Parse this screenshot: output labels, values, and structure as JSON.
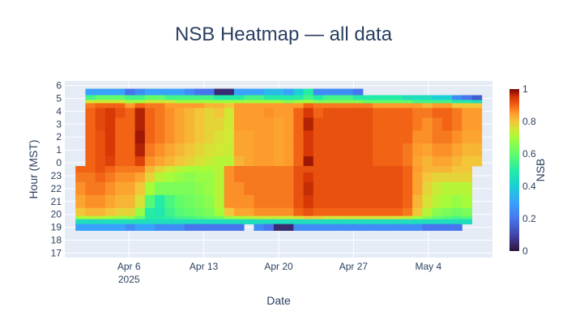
{
  "chart_data": {
    "type": "heatmap",
    "title": "NSB Heatmap — all data",
    "xlabel": "Date",
    "ylabel": "Hour (MST)",
    "x_ticks": [
      "Apr 6",
      "Apr 13",
      "Apr 20",
      "Apr 27",
      "May 4"
    ],
    "x_tick_year": "2025",
    "x_range": [
      "2025-03-31",
      "2025-05-10"
    ],
    "y_ticks": [
      "6",
      "5",
      "4",
      "3",
      "2",
      "1",
      "0",
      "23",
      "22",
      "21",
      "20",
      "19",
      "18",
      "17"
    ],
    "colorbar": {
      "title": "NSB",
      "range": [
        0,
        1
      ],
      "ticks": [
        "0",
        "0.2",
        "0.4",
        "0.6",
        "0.8",
        "1"
      ]
    },
    "colorscale": "Turbo",
    "background_color": "#e5ecf6",
    "grid": true,
    "rows": [
      {
        "hour": "5.5",
        "values": [
          null,
          0.3,
          0.3,
          0.3,
          0.3,
          0.2,
          0.25,
          0.3,
          0.3,
          0.3,
          0.3,
          0.25,
          0.2,
          0.2,
          0.05,
          0.05,
          0.3,
          0.3,
          0.3,
          0.35,
          0.35,
          0.3,
          0.4,
          0.5,
          0.25,
          0.25,
          0.25,
          0.25,
          0.2,
          null,
          null,
          null,
          null,
          null,
          null,
          null,
          null,
          null,
          null,
          null,
          null
        ]
      },
      {
        "hour": "5",
        "values": [
          null,
          0.55,
          0.6,
          0.6,
          0.6,
          0.55,
          0.55,
          0.6,
          0.6,
          0.55,
          0.55,
          0.55,
          0.55,
          0.55,
          0.5,
          0.5,
          0.5,
          0.55,
          0.55,
          0.5,
          0.5,
          0.5,
          0.5,
          0.55,
          0.5,
          0.55,
          0.55,
          0.55,
          0.5,
          0.5,
          0.5,
          0.5,
          0.5,
          0.45,
          0.45,
          0.45,
          0.4,
          0.4,
          0.25,
          0.2,
          0.15
        ]
      },
      {
        "hour": "4.75",
        "values": [
          null,
          0.75,
          0.75,
          0.75,
          0.75,
          0.7,
          0.7,
          0.75,
          0.75,
          0.75,
          0.7,
          0.7,
          0.7,
          0.7,
          0.7,
          0.7,
          0.7,
          0.7,
          0.7,
          0.7,
          0.7,
          0.65,
          0.7,
          0.7,
          0.65,
          0.65,
          0.65,
          0.65,
          0.65,
          0.6,
          0.6,
          0.6,
          0.6,
          0.6,
          0.55,
          0.55,
          0.55,
          0.55,
          0.5,
          0.5,
          0.45
        ]
      },
      {
        "hour": "4.5",
        "values": [
          null,
          0.88,
          0.9,
          0.9,
          0.9,
          0.85,
          0.9,
          0.88,
          0.88,
          0.85,
          0.85,
          0.85,
          0.85,
          0.82,
          0.82,
          0.8,
          0.85,
          0.85,
          0.85,
          0.85,
          0.85,
          0.85,
          0.85,
          0.9,
          0.88,
          0.88,
          0.88,
          0.88,
          0.88,
          0.88,
          0.85,
          0.85,
          0.85,
          0.85,
          0.85,
          0.82,
          0.85,
          0.85,
          0.8,
          0.8,
          0.8
        ]
      },
      {
        "hour": "4",
        "values": [
          null,
          0.9,
          0.93,
          0.95,
          0.92,
          0.9,
          0.97,
          0.9,
          0.88,
          0.86,
          0.84,
          0.82,
          0.8,
          0.78,
          0.8,
          0.75,
          0.85,
          0.85,
          0.85,
          0.86,
          0.85,
          0.85,
          0.9,
          0.95,
          0.9,
          0.92,
          0.92,
          0.92,
          0.92,
          0.92,
          0.9,
          0.9,
          0.9,
          0.9,
          0.88,
          0.88,
          0.9,
          0.9,
          0.88,
          0.85,
          0.85
        ]
      },
      {
        "hour": "3",
        "values": [
          null,
          0.9,
          0.93,
          0.95,
          0.9,
          0.9,
          0.97,
          0.9,
          0.88,
          0.86,
          0.84,
          0.82,
          0.8,
          0.78,
          0.78,
          0.75,
          0.85,
          0.85,
          0.85,
          0.85,
          0.84,
          0.85,
          0.9,
          0.97,
          0.92,
          0.92,
          0.92,
          0.92,
          0.92,
          0.92,
          0.9,
          0.9,
          0.9,
          0.9,
          0.88,
          0.86,
          0.88,
          0.9,
          0.88,
          0.85,
          0.85
        ]
      },
      {
        "hour": "2",
        "values": [
          null,
          0.9,
          0.92,
          0.95,
          0.9,
          0.9,
          0.98,
          0.9,
          0.88,
          0.86,
          0.84,
          0.82,
          0.8,
          0.78,
          0.76,
          0.75,
          0.84,
          0.84,
          0.85,
          0.85,
          0.84,
          0.85,
          0.9,
          0.95,
          0.92,
          0.92,
          0.92,
          0.92,
          0.92,
          0.92,
          0.9,
          0.9,
          0.9,
          0.9,
          0.86,
          0.86,
          0.88,
          0.88,
          0.86,
          0.84,
          0.84
        ]
      },
      {
        "hour": "1",
        "values": [
          null,
          0.9,
          0.92,
          0.95,
          0.9,
          0.9,
          0.97,
          0.88,
          0.86,
          0.84,
          0.82,
          0.8,
          0.78,
          0.76,
          0.75,
          0.74,
          0.84,
          0.84,
          0.85,
          0.85,
          0.84,
          0.85,
          0.9,
          0.95,
          0.92,
          0.92,
          0.92,
          0.92,
          0.92,
          0.92,
          0.9,
          0.9,
          0.9,
          0.88,
          0.85,
          0.84,
          0.86,
          0.86,
          0.84,
          0.82,
          0.82
        ]
      },
      {
        "hour": "0",
        "values": [
          null,
          0.9,
          0.92,
          0.94,
          0.9,
          0.9,
          0.94,
          0.86,
          0.84,
          0.82,
          0.8,
          0.78,
          0.76,
          0.74,
          0.72,
          0.72,
          0.82,
          0.84,
          0.85,
          0.85,
          0.84,
          0.85,
          0.9,
          0.98,
          0.92,
          0.92,
          0.92,
          0.92,
          0.92,
          0.92,
          0.9,
          0.9,
          0.9,
          0.88,
          0.84,
          0.82,
          0.84,
          0.84,
          0.82,
          0.8,
          0.8
        ]
      },
      {
        "hour": "23.5",
        "values": [
          0.9,
          0.9,
          0.92,
          0.9,
          0.88,
          0.88,
          0.88,
          0.82,
          0.78,
          0.75,
          0.72,
          0.7,
          0.7,
          0.7,
          0.72,
          0.86,
          0.88,
          0.88,
          0.88,
          0.88,
          0.88,
          0.88,
          0.92,
          0.92,
          0.92,
          0.92,
          0.92,
          0.92,
          0.92,
          0.92,
          0.92,
          0.92,
          0.92,
          0.9,
          0.85,
          0.82,
          0.82,
          0.82,
          0.8,
          0.8,
          null
        ]
      },
      {
        "hour": "23",
        "values": [
          0.88,
          0.88,
          0.9,
          0.88,
          0.86,
          0.86,
          0.84,
          0.78,
          0.72,
          0.7,
          0.68,
          0.66,
          0.68,
          0.68,
          0.72,
          0.86,
          0.88,
          0.88,
          0.88,
          0.88,
          0.88,
          0.88,
          0.92,
          0.95,
          0.92,
          0.92,
          0.92,
          0.92,
          0.92,
          0.92,
          0.92,
          0.92,
          0.92,
          0.9,
          0.84,
          0.8,
          0.78,
          0.78,
          0.78,
          0.78,
          null
        ]
      },
      {
        "hour": "22",
        "values": [
          0.86,
          0.88,
          0.88,
          0.86,
          0.84,
          0.84,
          0.8,
          0.7,
          0.64,
          0.64,
          0.64,
          0.64,
          0.66,
          0.68,
          0.72,
          0.86,
          0.86,
          0.88,
          0.88,
          0.88,
          0.88,
          0.88,
          0.92,
          0.96,
          0.92,
          0.92,
          0.92,
          0.92,
          0.92,
          0.92,
          0.92,
          0.92,
          0.92,
          0.9,
          0.84,
          0.78,
          0.74,
          0.72,
          0.72,
          0.72,
          null
        ]
      },
      {
        "hour": "21",
        "values": [
          0.84,
          0.86,
          0.86,
          0.84,
          0.82,
          0.82,
          0.76,
          0.58,
          0.5,
          0.56,
          0.6,
          0.62,
          0.64,
          0.66,
          0.72,
          0.86,
          0.86,
          0.86,
          0.88,
          0.88,
          0.88,
          0.88,
          0.92,
          0.95,
          0.92,
          0.92,
          0.92,
          0.92,
          0.92,
          0.92,
          0.92,
          0.92,
          0.92,
          0.9,
          0.82,
          0.76,
          0.72,
          0.7,
          0.68,
          0.7,
          null
        ]
      },
      {
        "hour": "20",
        "values": [
          0.8,
          0.82,
          0.82,
          0.8,
          0.78,
          0.78,
          0.68,
          0.5,
          0.48,
          0.54,
          0.58,
          0.6,
          0.62,
          0.64,
          0.7,
          0.8,
          0.84,
          0.84,
          0.86,
          0.86,
          0.86,
          0.86,
          0.9,
          0.92,
          0.9,
          0.9,
          0.9,
          0.9,
          0.9,
          0.9,
          0.9,
          0.9,
          0.9,
          0.88,
          0.8,
          0.72,
          0.66,
          0.64,
          0.62,
          0.64,
          null
        ]
      },
      {
        "hour": "19.75",
        "values": [
          0.7,
          0.72,
          0.72,
          0.7,
          0.68,
          0.68,
          0.6,
          0.5,
          0.5,
          0.52,
          0.55,
          0.56,
          0.58,
          0.6,
          0.62,
          0.68,
          0.7,
          0.72,
          0.74,
          0.74,
          0.74,
          0.74,
          0.76,
          0.8,
          0.78,
          0.76,
          0.76,
          0.76,
          0.76,
          0.76,
          0.76,
          0.76,
          0.76,
          0.74,
          0.7,
          0.65,
          0.6,
          0.58,
          0.56,
          0.58,
          null
        ]
      },
      {
        "hour": "19.5",
        "values": [
          0.45,
          0.45,
          0.45,
          0.45,
          0.45,
          0.45,
          0.45,
          0.45,
          0.45,
          0.45,
          0.45,
          0.45,
          0.45,
          0.45,
          0.45,
          0.45,
          0.45,
          0.45,
          0.45,
          0.45,
          0.45,
          0.45,
          0.45,
          0.45,
          0.45,
          0.45,
          0.45,
          0.45,
          0.45,
          0.45,
          0.45,
          0.45,
          0.45,
          0.45,
          0.45,
          0.45,
          0.45,
          0.45,
          0.45,
          0.45,
          null
        ]
      },
      {
        "hour": "19",
        "values": [
          0.3,
          0.3,
          0.3,
          0.3,
          0.3,
          0.25,
          0.3,
          0.3,
          0.25,
          0.25,
          0.25,
          0.2,
          0.2,
          0.2,
          0.2,
          0.2,
          0.2,
          null,
          0.25,
          0.2,
          0.05,
          0.05,
          0.25,
          0.25,
          0.25,
          0.25,
          0.25,
          0.25,
          0.25,
          0.25,
          0.25,
          0.25,
          0.25,
          0.25,
          0.25,
          0.2,
          0.2,
          0.2,
          0.2,
          null,
          null
        ]
      }
    ]
  }
}
